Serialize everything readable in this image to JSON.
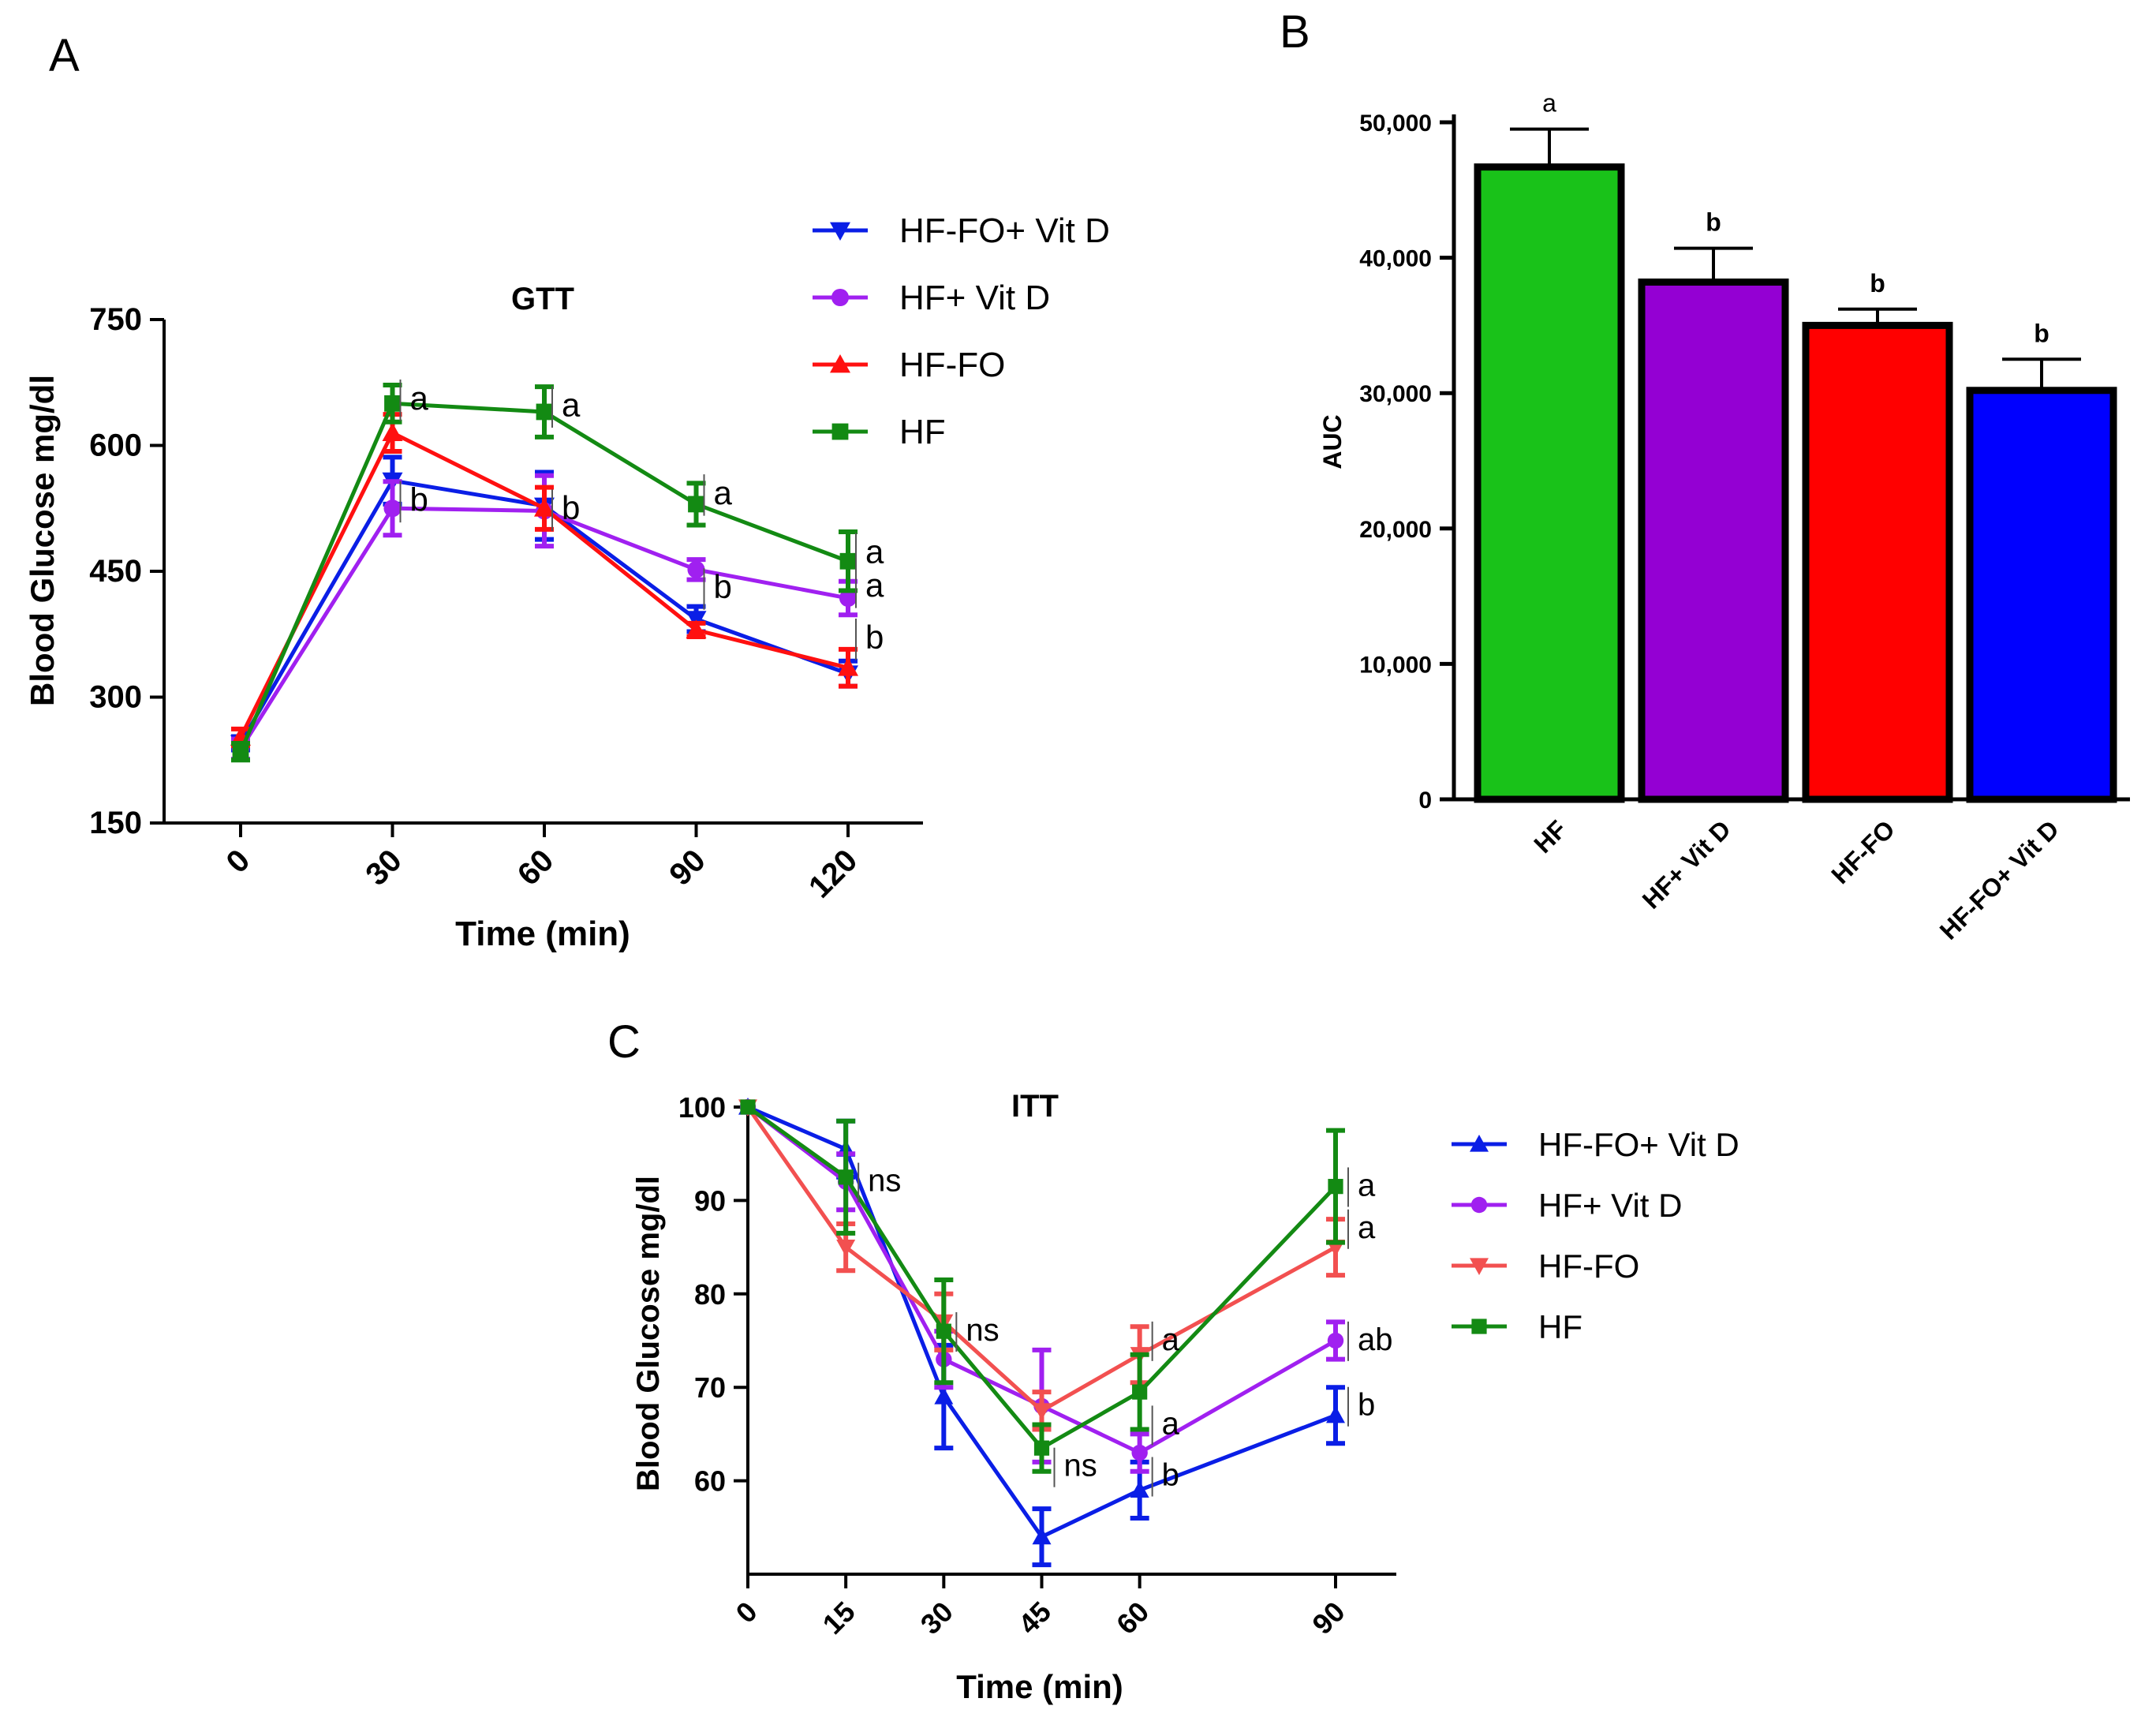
{
  "colors": {
    "blue": "#0a1ee6",
    "purple": "#a020f0",
    "red": "#ff1010",
    "green": "#138a13",
    "salmon": "#f25050",
    "bar_green": "#19c219",
    "bar_purple": "#9400d3",
    "bar_red": "#ff0000",
    "bar_blue": "#0000ff"
  },
  "chart_data": [
    {
      "id": "A",
      "panel_label": "A",
      "type": "line",
      "title": "GTT",
      "xlabel": "Time (min)",
      "ylabel": "Blood Glucose mg/dl",
      "x": [
        0,
        30,
        60,
        90,
        120
      ],
      "x_tick_labels": [
        "0",
        "30",
        "60",
        "90",
        "120"
      ],
      "ylim": [
        150,
        750
      ],
      "y_ticks": [
        150,
        300,
        450,
        600,
        750
      ],
      "y_tick_labels": [
        "150",
        "300",
        "450",
        "600",
        "750"
      ],
      "legend": [
        "HF-FO+ Vit D",
        "HF+ Vit D",
        "HF-FO",
        "HF"
      ],
      "series": [
        {
          "name": "HF-FO+ Vit D",
          "color": "#0a1ee6",
          "marker": "tri-down",
          "values": [
            245,
            558,
            528,
            393,
            328
          ],
          "err": [
            8,
            28,
            40,
            15,
            15
          ]
        },
        {
          "name": "HF+ Vit D",
          "color": "#a020f0",
          "marker": "circle",
          "values": [
            238,
            525,
            522,
            452,
            418
          ],
          "err": [
            12,
            32,
            42,
            12,
            20
          ]
        },
        {
          "name": "HF-FO",
          "color": "#ff1010",
          "marker": "tri-up",
          "values": [
            252,
            615,
            525,
            380,
            335
          ],
          "err": [
            10,
            22,
            25,
            8,
            22
          ]
        },
        {
          "name": "HF",
          "color": "#138a13",
          "marker": "square",
          "values": [
            235,
            650,
            640,
            530,
            462
          ],
          "err": [
            10,
            22,
            30,
            25,
            35
          ]
        }
      ],
      "annotations": [
        {
          "text": "a",
          "x": 30,
          "y": 643
        },
        {
          "text": "b",
          "x": 30,
          "y": 522
        },
        {
          "text": "a",
          "x": 60,
          "y": 635
        },
        {
          "text": "b",
          "x": 60,
          "y": 512
        },
        {
          "text": "a",
          "x": 90,
          "y": 530
        },
        {
          "text": "b",
          "x": 90,
          "y": 418
        },
        {
          "text": "a",
          "x": 120,
          "y": 460
        },
        {
          "text": "a",
          "x": 120,
          "y": 420
        },
        {
          "text": "b",
          "x": 120,
          "y": 358
        }
      ]
    },
    {
      "id": "B",
      "panel_label": "B",
      "type": "bar",
      "ylabel": "AUC",
      "categories": [
        "HF",
        "HF+ Vit D",
        "HF-FO",
        "HF-FO+ Vit D"
      ],
      "values": [
        46700,
        38200,
        35000,
        30200
      ],
      "err": [
        2800,
        2500,
        1200,
        2300
      ],
      "bar_colors": [
        "#19c219",
        "#9400d3",
        "#ff0000",
        "#0000ff"
      ],
      "sig_labels": [
        "a",
        "b",
        "b",
        "b"
      ],
      "ylim": [
        0,
        50000
      ],
      "y_ticks": [
        0,
        10000,
        20000,
        30000,
        40000,
        50000
      ],
      "y_tick_labels": [
        "0",
        "10,000",
        "20,000",
        "30,000",
        "40,000",
        "50,000"
      ]
    },
    {
      "id": "C",
      "panel_label": "C",
      "type": "line",
      "title": "ITT",
      "xlabel": "Time (min)",
      "ylabel": "Blood Glucose mg/dl",
      "x": [
        0,
        15,
        30,
        45,
        60,
        90
      ],
      "x_tick_labels": [
        "0",
        "15",
        "30",
        "45",
        "60",
        "90"
      ],
      "ylim": [
        50,
        100
      ],
      "y_ticks": [
        60,
        70,
        80,
        90,
        100
      ],
      "y_tick_labels": [
        "60",
        "70",
        "80",
        "90",
        "100"
      ],
      "legend": [
        "HF-FO+ Vit D",
        "HF+ Vit D",
        "HF-FO",
        "HF"
      ],
      "series": [
        {
          "name": "HF-FO+ Vit D",
          "color": "#0a1ee6",
          "marker": "tri-up",
          "values": [
            100,
            95.5,
            69,
            54,
            59,
            67
          ],
          "err": [
            0,
            3,
            5.5,
            3,
            3,
            3
          ]
        },
        {
          "name": "HF+ Vit D",
          "color": "#a020f0",
          "marker": "circle",
          "values": [
            100,
            92,
            73,
            68,
            63,
            75
          ],
          "err": [
            0,
            3,
            3,
            6,
            2,
            2
          ]
        },
        {
          "name": "HF-FO",
          "color": "#f25050",
          "marker": "tri-down",
          "values": [
            100,
            85,
            77,
            67.5,
            73.5,
            85
          ],
          "err": [
            0,
            2.5,
            3,
            2,
            3,
            3
          ]
        },
        {
          "name": "HF",
          "color": "#138a13",
          "marker": "square",
          "values": [
            100,
            92.5,
            76,
            63.5,
            69.5,
            91.5
          ],
          "err": [
            0,
            6,
            5.5,
            2.5,
            4,
            6
          ]
        }
      ],
      "annotations": [
        {
          "text": "ns",
          "x": 15,
          "y": 91
        },
        {
          "text": "ns",
          "x": 30,
          "y": 75
        },
        {
          "text": "ns",
          "x": 45,
          "y": 60.5
        },
        {
          "text": "a",
          "x": 60,
          "y": 74
        },
        {
          "text": "a",
          "x": 60,
          "y": 65
        },
        {
          "text": "b",
          "x": 60,
          "y": 59.5
        },
        {
          "text": "a",
          "x": 90,
          "y": 90.5
        },
        {
          "text": "a",
          "x": 90,
          "y": 86
        },
        {
          "text": "ab",
          "x": 90,
          "y": 74
        },
        {
          "text": "b",
          "x": 90,
          "y": 67
        }
      ]
    }
  ]
}
